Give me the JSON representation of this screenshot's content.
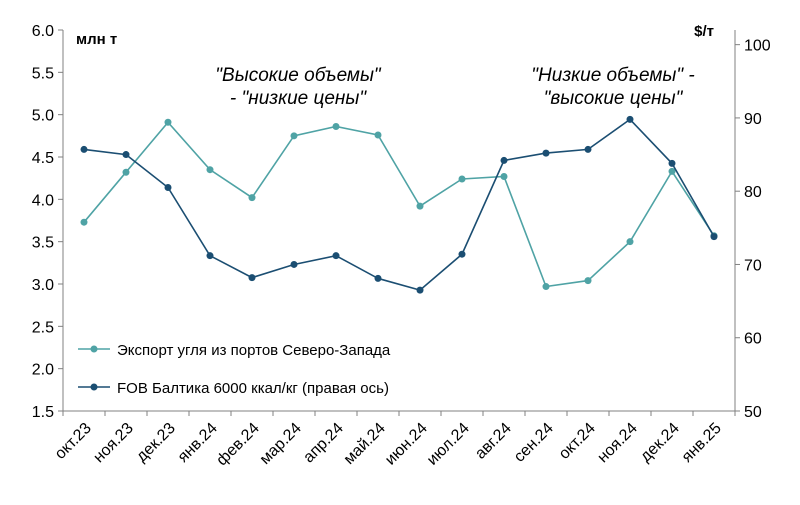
{
  "chart_data": {
    "type": "line",
    "categories": [
      "окт.23",
      "ноя.23",
      "дек.23",
      "янв.24",
      "фев.24",
      "мар.24",
      "апр.24",
      "май.24",
      "июн.24",
      "июл.24",
      "авг.24",
      "сен.24",
      "окт.24",
      "ноя.24",
      "дек.24",
      "янв.25"
    ],
    "series": [
      {
        "name": "Экспорт угля из портов Северо-Запада",
        "axis": "left",
        "color": "#4fa3a5",
        "values": [
          3.73,
          4.32,
          4.91,
          4.35,
          4.02,
          4.75,
          4.86,
          4.76,
          3.92,
          4.24,
          4.27,
          2.97,
          3.04,
          3.5,
          4.33,
          3.57
        ]
      },
      {
        "name": "FOB Балтика 6000 ккал/кг (правая ось)",
        "axis": "right",
        "color": "#1b4e72",
        "values": [
          85.7,
          85.0,
          80.5,
          71.2,
          68.2,
          70.0,
          71.2,
          68.1,
          66.5,
          71.4,
          84.2,
          85.2,
          85.7,
          89.8,
          83.8,
          73.8
        ]
      }
    ],
    "y_left": {
      "unit": "млн т",
      "min": 1.5,
      "max": 6.0,
      "ticks": [
        "1.5",
        "2.0",
        "2.5",
        "3.0",
        "3.5",
        "4.0",
        "4.5",
        "5.0",
        "5.5",
        "6.0"
      ]
    },
    "y_right": {
      "unit": "$/т",
      "min": 50,
      "max": 102,
      "ticks": [
        "50",
        "60",
        "70",
        "80",
        "90",
        "100"
      ]
    },
    "annotations": [
      {
        "line1": "\"Высокие объемы\"",
        "line2": "- \"низкие цены\""
      },
      {
        "line1": "\"Низкие объемы\" -",
        "line2": "\"высокие цены\""
      }
    ],
    "legend_placement": "bottom-left",
    "grid": false
  }
}
